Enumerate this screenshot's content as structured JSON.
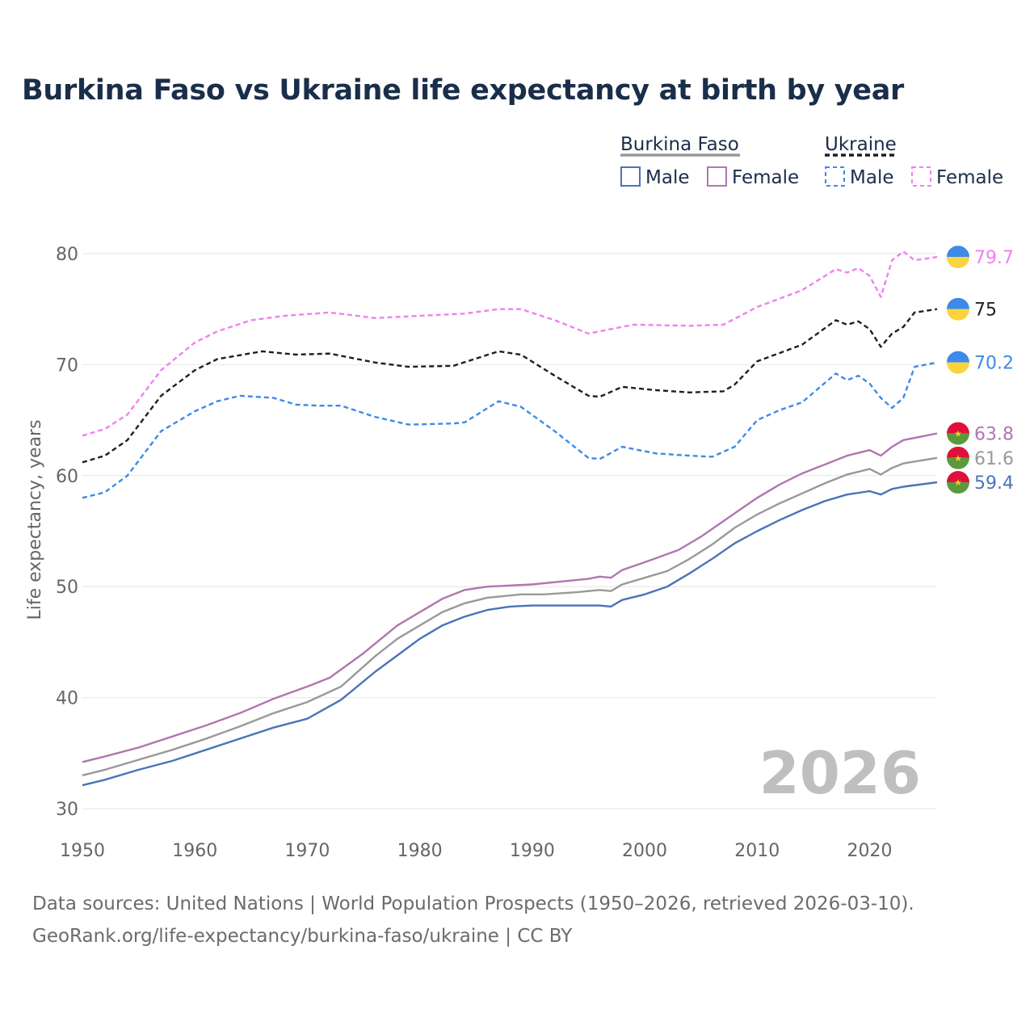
{
  "title": "Burkina Faso vs Ukraine life expectancy at birth by year",
  "footer": {
    "sources": "Data sources: United Nations | World Population Prospects (1950–2026, retrieved 2026-03-10).",
    "url": "GeoRank.org/life-expectancy/burkina-faso/ukraine | CC BY"
  },
  "legend": {
    "groups": [
      {
        "name": "Burkina Faso",
        "items": [
          {
            "label": "Male",
            "color": "#4a74b8",
            "dashed": false
          },
          {
            "label": "Female",
            "color": "#b076b0",
            "dashed": false
          }
        ]
      },
      {
        "name": "Ukraine",
        "items": [
          {
            "label": "Male",
            "color": "#3d8ae8",
            "dashed": true
          },
          {
            "label": "Female",
            "color": "#f080ee",
            "dashed": true
          }
        ]
      }
    ]
  },
  "chart_data": {
    "type": "line",
    "title": "Burkina Faso vs Ukraine life expectancy at birth by year",
    "xlabel": "",
    "ylabel": "Life expectancy, years",
    "xlim": [
      1950,
      2026
    ],
    "ylim": [
      30,
      82
    ],
    "xticks": [
      1950,
      1960,
      1970,
      1980,
      1990,
      2000,
      2010,
      2020
    ],
    "yticks": [
      30,
      40,
      50,
      60,
      70,
      80
    ],
    "year_watermark": "2026",
    "series": [
      {
        "id": "ua_female",
        "name": "Ukraine Female",
        "color": "#f080ee",
        "dashed": true,
        "flag": "ukraine",
        "end_label": "79.7",
        "points": [
          [
            1950,
            63.6
          ],
          [
            1952,
            64.2
          ],
          [
            1954,
            65.5
          ],
          [
            1957,
            69.5
          ],
          [
            1960,
            72
          ],
          [
            1962,
            73
          ],
          [
            1965,
            74
          ],
          [
            1968,
            74.4
          ],
          [
            1972,
            74.7
          ],
          [
            1976,
            74.2
          ],
          [
            1980,
            74.4
          ],
          [
            1984,
            74.6
          ],
          [
            1987,
            75
          ],
          [
            1989,
            75
          ],
          [
            1992,
            74
          ],
          [
            1995,
            72.8
          ],
          [
            1997,
            73.2
          ],
          [
            1999,
            73.6
          ],
          [
            2004,
            73.5
          ],
          [
            2007,
            73.6
          ],
          [
            2010,
            75.2
          ],
          [
            2014,
            76.7
          ],
          [
            2017,
            78.6
          ],
          [
            2018,
            78.3
          ],
          [
            2019,
            78.7
          ],
          [
            2020,
            78
          ],
          [
            2021,
            76.1
          ],
          [
            2022,
            79.4
          ],
          [
            2023,
            80.2
          ],
          [
            2024,
            79.4
          ],
          [
            2026,
            79.7
          ]
        ]
      },
      {
        "id": "ua_total",
        "name": "Ukraine",
        "color": "#1f1f1f",
        "dashed": true,
        "flag": "ukraine",
        "end_label": "75",
        "points": [
          [
            1950,
            61.2
          ],
          [
            1952,
            61.8
          ],
          [
            1954,
            63.2
          ],
          [
            1957,
            67.2
          ],
          [
            1960,
            69.5
          ],
          [
            1962,
            70.5
          ],
          [
            1966,
            71.2
          ],
          [
            1969,
            70.9
          ],
          [
            1972,
            71
          ],
          [
            1976,
            70.2
          ],
          [
            1979,
            69.8
          ],
          [
            1983,
            69.9
          ],
          [
            1987,
            71.2
          ],
          [
            1989,
            70.9
          ],
          [
            1992,
            69
          ],
          [
            1995,
            67.2
          ],
          [
            1996,
            67.1
          ],
          [
            1998,
            68
          ],
          [
            2001,
            67.7
          ],
          [
            2004,
            67.5
          ],
          [
            2007,
            67.6
          ],
          [
            2008,
            68.2
          ],
          [
            2010,
            70.3
          ],
          [
            2014,
            71.8
          ],
          [
            2017,
            74
          ],
          [
            2018,
            73.6
          ],
          [
            2019,
            73.9
          ],
          [
            2020,
            73.2
          ],
          [
            2021,
            71.6
          ],
          [
            2022,
            72.8
          ],
          [
            2023,
            73.4
          ],
          [
            2024,
            74.7
          ],
          [
            2026,
            75
          ]
        ]
      },
      {
        "id": "ua_male",
        "name": "Ukraine Male",
        "color": "#3d8ae8",
        "dashed": true,
        "flag": "ukraine",
        "end_label": "70.2",
        "points": [
          [
            1950,
            58
          ],
          [
            1952,
            58.5
          ],
          [
            1954,
            60
          ],
          [
            1957,
            64
          ],
          [
            1960,
            65.8
          ],
          [
            1962,
            66.7
          ],
          [
            1964,
            67.2
          ],
          [
            1967,
            67
          ],
          [
            1969,
            66.4
          ],
          [
            1971,
            66.3
          ],
          [
            1973,
            66.3
          ],
          [
            1976,
            65.3
          ],
          [
            1979,
            64.6
          ],
          [
            1983,
            64.7
          ],
          [
            1984,
            64.8
          ],
          [
            1987,
            66.7
          ],
          [
            1989,
            66.2
          ],
          [
            1992,
            64
          ],
          [
            1995,
            61.6
          ],
          [
            1996,
            61.5
          ],
          [
            1998,
            62.6
          ],
          [
            2001,
            62
          ],
          [
            2004,
            61.8
          ],
          [
            2006,
            61.7
          ],
          [
            2008,
            62.6
          ],
          [
            2010,
            65
          ],
          [
            2012,
            65.9
          ],
          [
            2014,
            66.6
          ],
          [
            2017,
            69.2
          ],
          [
            2018,
            68.6
          ],
          [
            2019,
            69
          ],
          [
            2020,
            68.3
          ],
          [
            2021,
            67
          ],
          [
            2022,
            66.1
          ],
          [
            2023,
            67
          ],
          [
            2024,
            69.8
          ],
          [
            2026,
            70.2
          ]
        ]
      },
      {
        "id": "bf_female",
        "name": "Burkina Faso Female",
        "color": "#b076b0",
        "dashed": false,
        "flag": "burkina-faso",
        "end_label": "63.8",
        "points": [
          [
            1950,
            34.2
          ],
          [
            1952,
            34.7
          ],
          [
            1955,
            35.5
          ],
          [
            1958,
            36.5
          ],
          [
            1961,
            37.5
          ],
          [
            1964,
            38.6
          ],
          [
            1967,
            39.9
          ],
          [
            1970,
            41
          ],
          [
            1972,
            41.8
          ],
          [
            1975,
            44
          ],
          [
            1978,
            46.5
          ],
          [
            1980,
            47.7
          ],
          [
            1982,
            48.9
          ],
          [
            1984,
            49.7
          ],
          [
            1986,
            50
          ],
          [
            1988,
            50.1
          ],
          [
            1990,
            50.2
          ],
          [
            1993,
            50.5
          ],
          [
            1995,
            50.7
          ],
          [
            1996,
            50.9
          ],
          [
            1997,
            50.8
          ],
          [
            1998,
            51.5
          ],
          [
            2000,
            52.2
          ],
          [
            2003,
            53.3
          ],
          [
            2005,
            54.5
          ],
          [
            2007,
            55.9
          ],
          [
            2010,
            58
          ],
          [
            2012,
            59.2
          ],
          [
            2014,
            60.2
          ],
          [
            2016,
            61
          ],
          [
            2018,
            61.8
          ],
          [
            2020,
            62.3
          ],
          [
            2021,
            61.8
          ],
          [
            2022,
            62.6
          ],
          [
            2023,
            63.2
          ],
          [
            2026,
            63.8
          ]
        ]
      },
      {
        "id": "bf_total",
        "name": "Burkina Faso",
        "color": "#999999",
        "dashed": false,
        "flag": "burkina-faso",
        "end_label": "61.6",
        "points": [
          [
            1950,
            33
          ],
          [
            1952,
            33.5
          ],
          [
            1955,
            34.4
          ],
          [
            1958,
            35.3
          ],
          [
            1961,
            36.3
          ],
          [
            1964,
            37.4
          ],
          [
            1967,
            38.6
          ],
          [
            1970,
            39.6
          ],
          [
            1973,
            41
          ],
          [
            1976,
            43.7
          ],
          [
            1978,
            45.3
          ],
          [
            1980,
            46.5
          ],
          [
            1982,
            47.7
          ],
          [
            1984,
            48.5
          ],
          [
            1986,
            49
          ],
          [
            1989,
            49.3
          ],
          [
            1991,
            49.3
          ],
          [
            1994,
            49.5
          ],
          [
            1996,
            49.7
          ],
          [
            1997,
            49.6
          ],
          [
            1998,
            50.2
          ],
          [
            2000,
            50.8
          ],
          [
            2002,
            51.4
          ],
          [
            2004,
            52.5
          ],
          [
            2006,
            53.8
          ],
          [
            2008,
            55.3
          ],
          [
            2010,
            56.5
          ],
          [
            2012,
            57.5
          ],
          [
            2014,
            58.4
          ],
          [
            2016,
            59.3
          ],
          [
            2018,
            60.1
          ],
          [
            2020,
            60.6
          ],
          [
            2021,
            60.1
          ],
          [
            2022,
            60.7
          ],
          [
            2023,
            61.1
          ],
          [
            2026,
            61.6
          ]
        ]
      },
      {
        "id": "bf_male",
        "name": "Burkina Faso Male",
        "color": "#4a74b8",
        "dashed": false,
        "flag": "burkina-faso",
        "end_label": "59.4",
        "points": [
          [
            1950,
            32.1
          ],
          [
            1952,
            32.6
          ],
          [
            1955,
            33.5
          ],
          [
            1958,
            34.3
          ],
          [
            1961,
            35.3
          ],
          [
            1964,
            36.3
          ],
          [
            1967,
            37.3
          ],
          [
            1970,
            38.1
          ],
          [
            1973,
            39.8
          ],
          [
            1976,
            42.3
          ],
          [
            1978,
            43.8
          ],
          [
            1980,
            45.3
          ],
          [
            1982,
            46.5
          ],
          [
            1984,
            47.3
          ],
          [
            1986,
            47.9
          ],
          [
            1988,
            48.2
          ],
          [
            1990,
            48.3
          ],
          [
            1993,
            48.3
          ],
          [
            1996,
            48.3
          ],
          [
            1997,
            48.2
          ],
          [
            1998,
            48.8
          ],
          [
            2000,
            49.3
          ],
          [
            2002,
            50
          ],
          [
            2004,
            51.2
          ],
          [
            2006,
            52.5
          ],
          [
            2008,
            53.9
          ],
          [
            2010,
            55
          ],
          [
            2012,
            56
          ],
          [
            2014,
            56.9
          ],
          [
            2016,
            57.7
          ],
          [
            2018,
            58.3
          ],
          [
            2020,
            58.6
          ],
          [
            2021,
            58.3
          ],
          [
            2022,
            58.8
          ],
          [
            2023,
            59
          ],
          [
            2026,
            59.4
          ]
        ]
      }
    ]
  }
}
